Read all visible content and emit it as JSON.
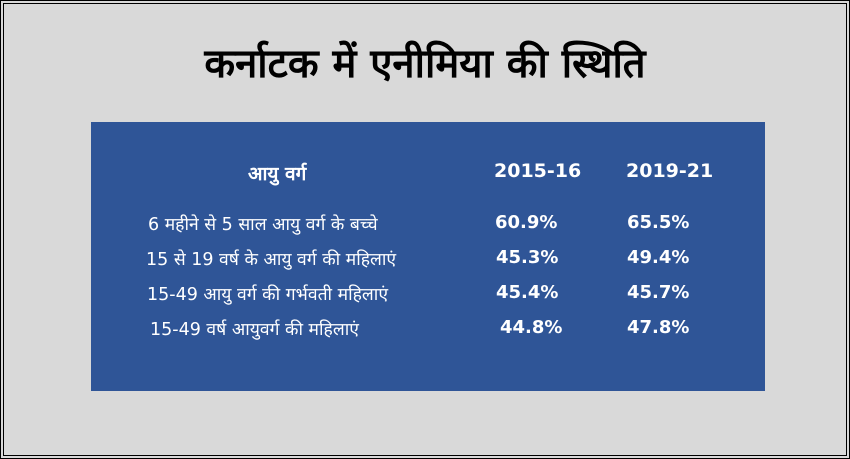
{
  "title": "कर्नाटक में एनीमिया की स्थिति",
  "table": {
    "headers": {
      "age_group": "आयु  वर्ग",
      "year1": "2015-16",
      "year2": "2019-21"
    },
    "rows": [
      {
        "label": "6 महीने से 5 साल आयु वर्ग के बच्चे",
        "y1": "60.9%",
        "y2": "65.5%"
      },
      {
        "label": "15 से 19 वर्ष के आयु वर्ग की महिलाएं",
        "y1": "45.3%",
        "y2": "49.4%"
      },
      {
        "label": "15-49 आयु वर्ग की गर्भवती महिलाएं",
        "y1": "45.4%",
        "y2": "45.7%"
      },
      {
        "label": "15-49 वर्ष आयुवर्ग की महिलाएं",
        "y1": "44.8%",
        "y2": "47.8%"
      }
    ]
  },
  "colors": {
    "background": "#d9d9d9",
    "panel": "#2f5597",
    "text_on_panel": "#ffffff",
    "title_text": "#000000"
  }
}
